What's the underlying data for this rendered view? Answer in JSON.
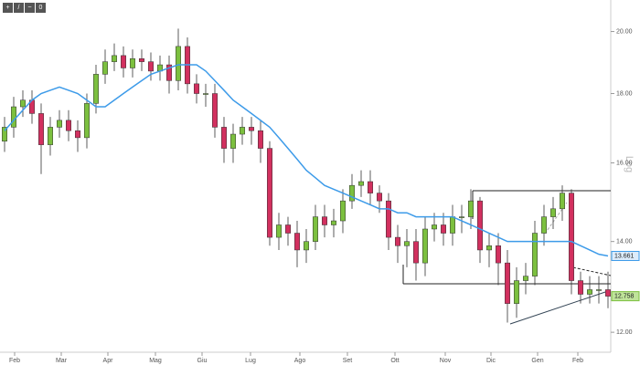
{
  "toolbar": {
    "badge": "0"
  },
  "chart_data": {
    "type": "candlestick",
    "log": true,
    "scale_label": "Log",
    "up_color": "#7cc03f",
    "down_color": "#d2305f",
    "xlim": [
      -0.5,
      66.3
    ],
    "ylim": [
      11.6,
      21.1
    ],
    "yticks": [
      {
        "value": 12,
        "label": "12.00"
      },
      {
        "value": 14,
        "label": "14.00"
      },
      {
        "value": 16,
        "label": "16.00"
      },
      {
        "value": 18,
        "label": "18.00"
      },
      {
        "value": 20,
        "label": "20.00"
      }
    ],
    "xticks": [
      {
        "value": 1.1,
        "label": "Feb"
      },
      {
        "value": 6.2,
        "label": "Mar"
      },
      {
        "value": 11.3,
        "label": "Apr"
      },
      {
        "value": 16.5,
        "label": "Mag"
      },
      {
        "value": 21.6,
        "label": "Giu"
      },
      {
        "value": 26.9,
        "label": "Lug"
      },
      {
        "value": 32.3,
        "label": "Ago"
      },
      {
        "value": 37.5,
        "label": "Set"
      },
      {
        "value": 42.7,
        "label": "Ott"
      },
      {
        "value": 48.2,
        "label": "Nov"
      },
      {
        "value": 53.2,
        "label": "Dic"
      },
      {
        "value": 58.3,
        "label": "Gen"
      },
      {
        "value": 62.7,
        "label": "Feb"
      }
    ],
    "open": [
      16.6,
      17.0,
      17.6,
      17.8,
      17.4,
      16.5,
      17.0,
      17.2,
      16.9,
      16.7,
      17.7,
      18.6,
      19.0,
      19.2,
      18.8,
      19.1,
      19.0,
      18.7,
      18.9,
      18.4,
      19.5,
      18.3,
      18.0,
      18.0,
      17.0,
      16.4,
      16.8,
      17.0,
      16.9,
      16.4,
      14.1,
      14.4,
      14.2,
      13.8,
      14.0,
      14.6,
      14.4,
      14.5,
      15.0,
      15.4,
      15.5,
      15.2,
      15.0,
      14.1,
      13.9,
      14.0,
      13.5,
      14.3,
      14.4,
      14.2,
      14.6,
      14.6,
      15.0,
      13.8,
      13.9,
      13.5,
      12.6,
      13.1,
      13.2,
      14.2,
      14.6,
      14.8,
      15.2,
      13.1,
      12.8,
      12.9,
      12.9
    ],
    "high": [
      17.3,
      17.9,
      18.1,
      18.1,
      17.7,
      17.3,
      17.5,
      17.5,
      17.2,
      18.0,
      18.9,
      19.4,
      19.6,
      19.5,
      19.4,
      19.4,
      19.3,
      19.2,
      19.2,
      20.1,
      19.8,
      18.6,
      18.3,
      18.3,
      17.3,
      17.1,
      17.3,
      17.3,
      17.2,
      16.6,
      14.7,
      14.6,
      14.5,
      14.3,
      14.9,
      14.9,
      14.8,
      15.3,
      15.7,
      15.8,
      15.8,
      15.4,
      15.2,
      14.4,
      14.3,
      14.3,
      14.6,
      14.7,
      14.7,
      14.9,
      14.9,
      15.3,
      15.1,
      14.2,
      14.2,
      13.8,
      13.4,
      13.5,
      14.5,
      14.9,
      15.1,
      15.4,
      15.3,
      13.3,
      13.2,
      13.2,
      13.3
    ],
    "low": [
      16.3,
      16.7,
      17.3,
      17.1,
      15.7,
      16.2,
      16.7,
      16.6,
      16.3,
      16.4,
      17.4,
      18.3,
      18.7,
      18.5,
      18.5,
      18.7,
      18.4,
      18.4,
      18.0,
      18.1,
      18.0,
      17.7,
      17.6,
      16.7,
      16.0,
      16.0,
      16.5,
      16.5,
      16.0,
      13.9,
      13.8,
      13.9,
      13.4,
      13.5,
      13.8,
      14.1,
      14.1,
      14.2,
      14.8,
      15.1,
      14.9,
      14.7,
      13.8,
      13.5,
      13.4,
      13.1,
      13.2,
      14.0,
      13.9,
      13.9,
      14.2,
      14.3,
      13.5,
      13.4,
      13.0,
      12.2,
      12.3,
      12.8,
      13.0,
      13.9,
      14.3,
      14.5,
      12.8,
      12.6,
      12.6,
      12.6,
      12.5
    ],
    "close": [
      17.0,
      17.6,
      17.8,
      17.4,
      16.5,
      17.0,
      17.2,
      16.9,
      16.7,
      17.7,
      18.6,
      19.0,
      19.2,
      18.8,
      19.1,
      19.0,
      18.7,
      18.9,
      18.4,
      19.5,
      18.3,
      18.0,
      18.0,
      17.0,
      16.4,
      16.8,
      17.0,
      16.9,
      16.4,
      14.1,
      14.4,
      14.2,
      13.8,
      14.0,
      14.6,
      14.4,
      14.5,
      15.0,
      15.4,
      15.5,
      15.2,
      15.0,
      14.1,
      13.9,
      14.0,
      13.5,
      14.3,
      14.4,
      14.2,
      14.6,
      14.6,
      15.0,
      13.8,
      13.9,
      13.5,
      12.6,
      13.1,
      13.2,
      14.2,
      14.6,
      14.8,
      15.2,
      13.1,
      12.8,
      12.9,
      12.9,
      12.758
    ],
    "moving_average": {
      "color": "#3d9be9",
      "values": [
        16.9,
        17.2,
        17.5,
        17.8,
        18.0,
        18.1,
        18.2,
        18.1,
        18.0,
        17.8,
        17.6,
        17.6,
        17.8,
        18.0,
        18.2,
        18.4,
        18.6,
        18.7,
        18.8,
        18.9,
        18.9,
        18.9,
        18.7,
        18.4,
        18.1,
        17.8,
        17.6,
        17.4,
        17.2,
        17.0,
        16.7,
        16.4,
        16.1,
        15.8,
        15.6,
        15.4,
        15.3,
        15.2,
        15.1,
        15.0,
        14.9,
        14.8,
        14.8,
        14.7,
        14.7,
        14.6,
        14.6,
        14.6,
        14.6,
        14.6,
        14.5,
        14.4,
        14.3,
        14.2,
        14.1,
        14.0,
        14.0,
        14.0,
        14.0,
        14.0,
        14.0,
        14.0,
        14.0,
        13.9,
        13.8,
        13.7,
        13.661
      ]
    }
  }
}
